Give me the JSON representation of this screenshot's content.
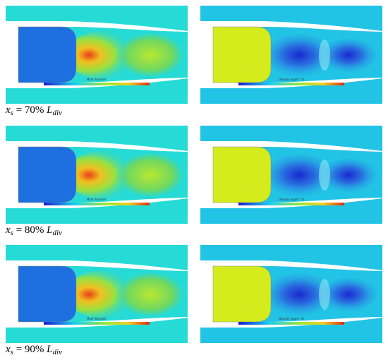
{
  "figure": {
    "rows": [
      {
        "caption": {
          "var": "x",
          "sub": "s",
          "eq": " = 70% ",
          "var2": "L",
          "sub2": "div"
        },
        "panels": [
          {
            "colorbar_title": "Mach Number"
          },
          {
            "colorbar_title": "Density (kg/m^3)"
          }
        ]
      },
      {
        "caption": {
          "var": "x",
          "sub": "s",
          "eq": " = 80% ",
          "var2": "L",
          "sub2": "div"
        },
        "panels": [
          {
            "colorbar_title": "Mach Number"
          },
          {
            "colorbar_title": "Density (kg/m^3)"
          }
        ]
      },
      {
        "caption": {
          "var": "x",
          "sub": "s",
          "eq": " = 90% ",
          "var2": "L",
          "sub2": "div"
        },
        "panels": [
          {
            "colorbar_title": "Mach Number"
          },
          {
            "colorbar_title": "Density (kg/m^3)"
          }
        ]
      }
    ]
  }
}
